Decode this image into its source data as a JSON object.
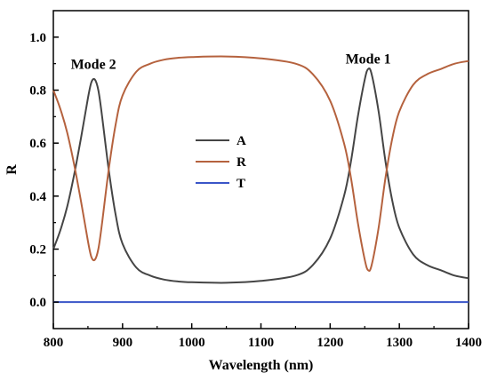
{
  "chart_data": {
    "type": "line",
    "title": "",
    "xlabel": "Wavelength (nm)",
    "ylabel": "R",
    "xlim": [
      800,
      1400
    ],
    "ylim": [
      -0.1,
      1.1
    ],
    "xticks": [
      800,
      900,
      1000,
      1100,
      1200,
      1300,
      1400
    ],
    "yticks": [
      0.0,
      0.2,
      0.4,
      0.6,
      0.8,
      1.0
    ],
    "x_tick_labels": [
      "800",
      "900",
      "1000",
      "1100",
      "1200",
      "1300",
      "1400"
    ],
    "y_tick_labels": [
      "0.0",
      "0.2",
      "0.4",
      "0.6",
      "0.8",
      "1.0"
    ],
    "grid": false,
    "legend_position": "center-left",
    "annotations": [
      {
        "text": "Mode 2",
        "x": 858,
        "y": 0.88
      },
      {
        "text": "Mode 1",
        "x": 1255,
        "y": 0.9
      }
    ],
    "x": [
      800,
      810,
      820,
      830,
      840,
      850,
      855,
      860,
      865,
      870,
      880,
      890,
      900,
      920,
      940,
      960,
      980,
      1000,
      1050,
      1100,
      1150,
      1175,
      1200,
      1220,
      1230,
      1240,
      1250,
      1255,
      1260,
      1270,
      1280,
      1290,
      1300,
      1320,
      1340,
      1360,
      1380,
      1400
    ],
    "series": [
      {
        "name": "A",
        "color": "#454545",
        "values": [
          0.2,
          0.27,
          0.36,
          0.48,
          0.62,
          0.77,
          0.83,
          0.84,
          0.8,
          0.71,
          0.5,
          0.33,
          0.22,
          0.13,
          0.1,
          0.085,
          0.078,
          0.075,
          0.073,
          0.08,
          0.1,
          0.14,
          0.24,
          0.4,
          0.53,
          0.7,
          0.84,
          0.88,
          0.86,
          0.72,
          0.53,
          0.38,
          0.28,
          0.18,
          0.14,
          0.12,
          0.1,
          0.09
        ]
      },
      {
        "name": "R",
        "color": "#b5623e",
        "values": [
          0.8,
          0.73,
          0.64,
          0.52,
          0.38,
          0.23,
          0.17,
          0.16,
          0.2,
          0.29,
          0.5,
          0.67,
          0.78,
          0.87,
          0.9,
          0.915,
          0.922,
          0.925,
          0.927,
          0.92,
          0.9,
          0.86,
          0.76,
          0.6,
          0.47,
          0.3,
          0.16,
          0.12,
          0.14,
          0.28,
          0.47,
          0.62,
          0.72,
          0.82,
          0.86,
          0.88,
          0.9,
          0.91
        ]
      },
      {
        "name": "T",
        "color": "#3a55c8",
        "values": [
          0.0,
          0.0,
          0.0,
          0.0,
          0.0,
          0.0,
          0.0,
          0.0,
          0.0,
          0.0,
          0.0,
          0.0,
          0.0,
          0.0,
          0.0,
          0.0,
          0.0,
          0.0,
          0.0,
          0.0,
          0.0,
          0.0,
          0.0,
          0.0,
          0.0,
          0.0,
          0.0,
          0.0,
          0.0,
          0.0,
          0.0,
          0.0,
          0.0,
          0.0,
          0.0,
          0.0,
          0.0,
          0.0
        ]
      }
    ]
  }
}
